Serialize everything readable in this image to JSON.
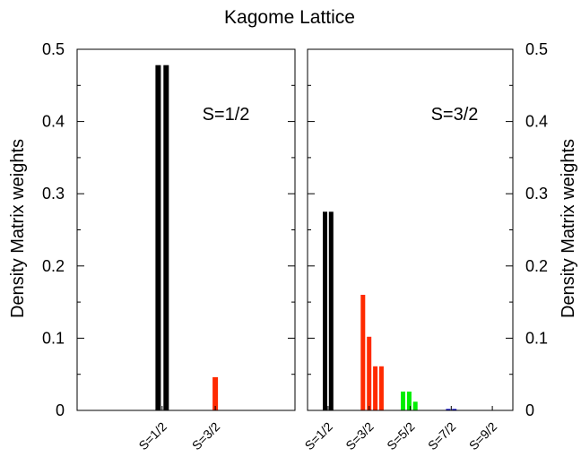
{
  "chart_data": {
    "type": "bar",
    "title": "Kagome Lattice",
    "ylabel": "Density Matrix weights",
    "ylim": [
      0,
      0.5
    ],
    "yticks": [
      "0",
      "0.1",
      "0.2",
      "0.3",
      "0.4",
      "0.5"
    ],
    "legend": "none",
    "panels": [
      {
        "annotation": "S=1/2",
        "ytick_side": "left",
        "categories": [
          "S=1/2",
          "S=3/2"
        ],
        "category_x": [
          1,
          3
        ],
        "bars": [
          {
            "x": 0.85,
            "value": 0.478,
            "color": "#000000"
          },
          {
            "x": 1.15,
            "value": 0.478,
            "color": "#000000"
          },
          {
            "x": 3.0,
            "value": 0.046,
            "color": "#ff2a00"
          }
        ]
      },
      {
        "annotation": "S=3/2",
        "ytick_side": "right",
        "categories": [
          "S=1/2",
          "S=3/2",
          "S=5/2",
          "S=7/2",
          "S=9/2"
        ],
        "category_x": [
          1,
          3,
          5,
          7,
          9
        ],
        "bars": [
          {
            "x": 0.85,
            "value": 0.275,
            "color": "#000000"
          },
          {
            "x": 1.15,
            "value": 0.275,
            "color": "#000000"
          },
          {
            "x": 2.7,
            "value": 0.16,
            "color": "#ff2a00"
          },
          {
            "x": 3.0,
            "value": 0.102,
            "color": "#ff2a00"
          },
          {
            "x": 3.3,
            "value": 0.061,
            "color": "#ff2a00"
          },
          {
            "x": 3.6,
            "value": 0.061,
            "color": "#ff2a00"
          },
          {
            "x": 4.65,
            "value": 0.026,
            "color": "#00ee00"
          },
          {
            "x": 4.95,
            "value": 0.026,
            "color": "#00ee00"
          },
          {
            "x": 5.25,
            "value": 0.012,
            "color": "#00ee00"
          },
          {
            "x": 6.85,
            "value": 0.002,
            "color": "#0000cc"
          },
          {
            "x": 7.15,
            "value": 0.002,
            "color": "#0000cc"
          }
        ]
      }
    ]
  }
}
